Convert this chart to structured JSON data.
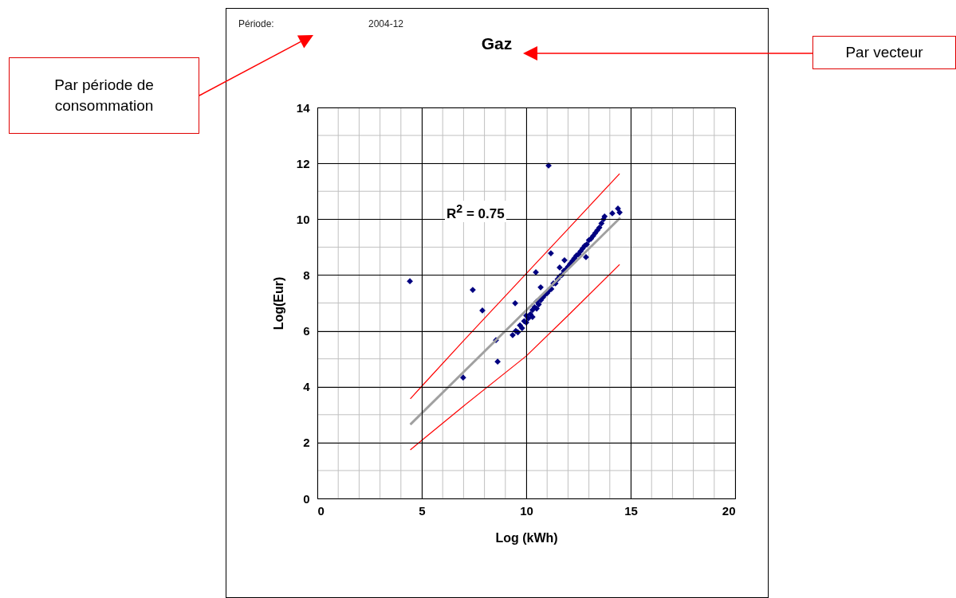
{
  "chart_data": {
    "type": "scatter",
    "title": "Gaz",
    "xlabel": "Log (kWh)",
    "ylabel": "Log(Eur)",
    "xlim": [
      0,
      20
    ],
    "xticks": [
      0,
      5,
      10,
      15,
      20
    ],
    "ylim": [
      0,
      14
    ],
    "yticks": [
      0,
      2,
      4,
      6,
      8,
      10,
      12,
      14
    ],
    "grid": true,
    "marker": "diamond",
    "annotations": [
      "Période:",
      "2004-12",
      "Par période de consommation",
      "Par vecteur",
      "R$^{2}$ = 0.75"
    ],
    "series": [
      {
        "color": "#000080",
        "x": [
          4.43,
          7.44,
          7.9,
          6.98,
          8.55,
          8.63,
          11.07,
          11.18,
          10.46,
          9.47,
          10.69,
          12.86,
          14.12,
          14.39,
          14.47,
          11.6,
          11.83,
          9.35,
          9.5,
          9.6,
          9.7,
          9.8,
          9.9,
          10.0,
          10.0,
          10.1,
          10.2,
          10.3,
          10.3,
          10.4,
          10.5,
          10.5,
          10.6,
          10.7,
          10.8,
          10.9,
          11.0,
          11.1,
          11.2,
          11.3,
          11.4,
          11.5,
          11.6,
          11.7,
          11.8,
          11.9,
          12.0,
          12.1,
          12.2,
          12.3,
          12.4,
          12.5,
          12.6,
          12.7,
          12.8,
          12.9,
          13.0,
          13.1,
          13.2,
          13.3,
          13.4,
          13.5,
          13.6,
          13.7,
          13.75
        ],
        "values": [
          7.78,
          7.47,
          6.73,
          4.33,
          5.67,
          4.9,
          11.92,
          8.78,
          8.1,
          6.99,
          7.56,
          8.64,
          10.21,
          10.38,
          10.24,
          8.27,
          8.53,
          5.85,
          6.0,
          5.95,
          6.2,
          6.1,
          6.35,
          6.3,
          6.55,
          6.45,
          6.6,
          6.75,
          6.5,
          6.85,
          6.8,
          7.05,
          6.95,
          7.1,
          7.2,
          7.3,
          7.35,
          7.45,
          7.5,
          7.7,
          7.7,
          7.85,
          7.95,
          8.0,
          8.15,
          8.2,
          8.3,
          8.4,
          8.5,
          8.6,
          8.7,
          8.75,
          8.85,
          8.95,
          9.05,
          9.1,
          9.25,
          9.3,
          9.4,
          9.5,
          9.6,
          9.7,
          9.85,
          10.0,
          10.1
        ]
      },
      {
        "type": "line",
        "marker": "none",
        "line_style": "solid",
        "color": "#a0a0a0",
        "x": [
          4.45,
          14.5
        ],
        "values": [
          2.65,
          10.05
        ]
      },
      {
        "type": "line",
        "marker": "none",
        "line_style": "solid",
        "color": "#ff0000",
        "x": [
          4.45,
          5,
          7,
          10,
          12,
          14.47
        ],
        "values": [
          3.57,
          4.02,
          5.65,
          8.05,
          9.65,
          11.63
        ]
      },
      {
        "type": "line",
        "marker": "none",
        "line_style": "solid",
        "color": "#ff0000",
        "x": [
          4.45,
          5,
          7,
          10,
          12,
          14.47
        ],
        "values": [
          1.74,
          2.08,
          3.31,
          5.1,
          6.55,
          8.38
        ]
      }
    ]
  }
}
